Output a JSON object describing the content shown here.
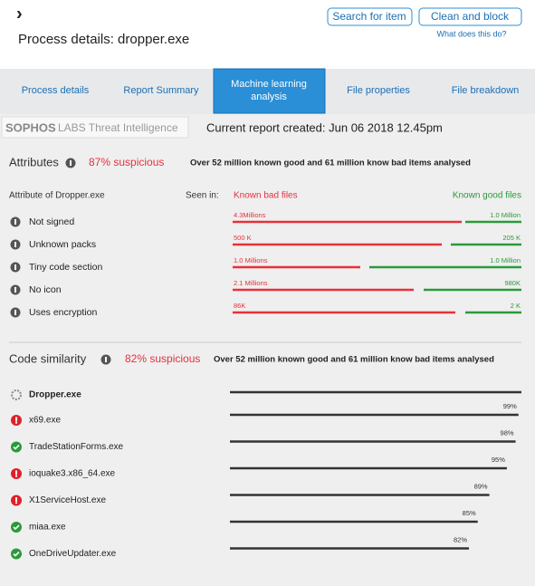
{
  "header": {
    "back": "›",
    "title": "Process details: dropper.exe",
    "buttons": [
      "Search for item",
      "Clean and block"
    ],
    "help": "What does this do?"
  },
  "tabs": {
    "items": [
      "Process details",
      "Report Summary",
      "Machine learning analysis",
      "File properties",
      "File breakdown"
    ],
    "active": 2
  },
  "report": {
    "brand": "SOPHOS",
    "brand_sub": "LABS Threat Intelligence",
    "created": "Current report created: Jun 06 2018 12.45pm"
  },
  "attributes": {
    "title": "Attributes",
    "suspicious": "87% suspicious",
    "summary": "Over 52 million known good and 61 million know bad items analysed",
    "col_attr": "Attribute of Dropper.exe",
    "col_seen": "Seen in:",
    "col_bad": "Known bad files",
    "col_good": "Known good files",
    "rows": [
      {
        "name": "Not signed",
        "bad": "4.3Millions",
        "good": "1.0 Million"
      },
      {
        "name": "Unknown packs",
        "bad": "500 K",
        "good": "205 K"
      },
      {
        "name": "Tiny code section",
        "bad": "1.0 Millions",
        "good": "1.0 Million"
      },
      {
        "name": "No icon",
        "bad": "2.1 Millions",
        "good": "980K"
      },
      {
        "name": "Uses encryption",
        "bad": "86K",
        "good": "2 K"
      }
    ]
  },
  "code_similarity": {
    "title": "Code similarity",
    "suspicious": "82% suspicious",
    "summary": "Over 52 million known good and 61 million know bad items analysed",
    "reference": "Dropper.exe",
    "items": [
      {
        "name": "x69.exe",
        "icon": "malicious",
        "value": 99,
        "label": "99%"
      },
      {
        "name": "TradeStationForms.exe",
        "icon": "clean",
        "value": 98,
        "label": "98%"
      },
      {
        "name": "ioquake3.x86_64.exe",
        "icon": "malicious",
        "value": 95,
        "label": "95%"
      },
      {
        "name": "X1ServiceHost.exe",
        "icon": "malicious",
        "value": 89,
        "label": "89%"
      },
      {
        "name": "miaa.exe",
        "icon": "clean",
        "value": 85,
        "label": "85%"
      },
      {
        "name": "OneDriveUpdater.exe",
        "icon": "clean",
        "value": 82,
        "label": "82%"
      }
    ]
  }
}
